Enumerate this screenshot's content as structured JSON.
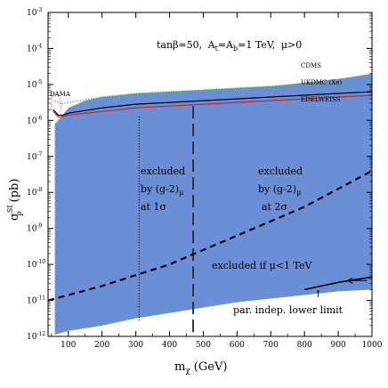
{
  "chart_data": {
    "type": "area",
    "title": "tanβ=50, At=Ab=1 TeV, μ>0",
    "title_parts": {
      "tanb": "tanβ=50,",
      "a_prefix": "A",
      "a_sub1": "t",
      "a_mid": "=A",
      "a_sub2": "b",
      "a_val": "=1 TeV,",
      "mu": "μ>0"
    },
    "xlabel": "mχ (GeV)",
    "xlabel_parts": {
      "m": "m",
      "sub": "χ",
      "unit": "(GeV)"
    },
    "ylabel": "σpSI (pb)",
    "ylabel_parts": {
      "sigma": "σ",
      "sup": "SI",
      "sub": "p",
      "unit": "(pb)"
    },
    "xlim": [
      40,
      1000
    ],
    "ylim_log10": [
      -12,
      -3
    ],
    "y_scale": "log",
    "x_ticks": [
      100,
      200,
      300,
      400,
      500,
      600,
      700,
      800,
      900,
      1000
    ],
    "x_tick_labels": [
      "100",
      "200",
      "300",
      "400",
      "500",
      "600",
      "700",
      "800",
      "900",
      "1000"
    ],
    "y_tick_exponents": [
      -12,
      -11,
      -10,
      -9,
      -8,
      -7,
      -6,
      -5,
      -4,
      -3
    ],
    "y_tick_labels": [
      "10",
      "10",
      "10",
      "10",
      "10",
      "10",
      "10",
      "10",
      "10",
      "10"
    ],
    "y_tick_exp_labels": [
      "-12",
      "-11",
      "-10",
      "-9",
      "-8",
      "-7",
      "-6",
      "-5",
      "-4",
      "-3"
    ],
    "region": {
      "color": "#6b8fd6",
      "upper": [
        [
          60,
          -6.1
        ],
        [
          75,
          -5.95
        ],
        [
          100,
          -5.65
        ],
        [
          150,
          -5.45
        ],
        [
          200,
          -5.35
        ],
        [
          300,
          -5.25
        ],
        [
          400,
          -5.2
        ],
        [
          500,
          -5.15
        ],
        [
          600,
          -5.1
        ],
        [
          700,
          -5.05
        ],
        [
          800,
          -4.95
        ],
        [
          900,
          -4.85
        ],
        [
          1000,
          -4.7
        ]
      ],
      "lower": [
        [
          1000,
          -10.7
        ],
        [
          900,
          -10.75
        ],
        [
          800,
          -10.85
        ],
        [
          700,
          -10.95
        ],
        [
          600,
          -11.05
        ],
        [
          500,
          -11.2
        ],
        [
          400,
          -11.35
        ],
        [
          300,
          -11.5
        ],
        [
          200,
          -11.7
        ],
        [
          100,
          -11.85
        ],
        [
          60,
          -11.95
        ]
      ]
    },
    "series": [
      {
        "name": "CDMS",
        "style": "dotted",
        "color": "#2ecc40",
        "points": [
          [
            60,
            -5.45
          ],
          [
            80,
            -5.55
          ],
          [
            100,
            -5.5
          ],
          [
            200,
            -5.35
          ],
          [
            300,
            -5.25
          ],
          [
            400,
            -5.2
          ],
          [
            500,
            -5.15
          ],
          [
            600,
            -5.1
          ],
          [
            700,
            -5.05
          ],
          [
            800,
            -5.0
          ],
          [
            900,
            -4.95
          ],
          [
            1000,
            -4.9
          ]
        ]
      },
      {
        "name": "UKDMC (Xe)",
        "style": "solid",
        "color": "#000000",
        "points": [
          [
            55,
            -5.7
          ],
          [
            70,
            -5.85
          ],
          [
            85,
            -5.85
          ],
          [
            100,
            -5.8
          ],
          [
            200,
            -5.65
          ],
          [
            300,
            -5.55
          ],
          [
            400,
            -5.5
          ],
          [
            500,
            -5.45
          ],
          [
            600,
            -5.4
          ],
          [
            700,
            -5.35
          ],
          [
            800,
            -5.3
          ],
          [
            900,
            -5.25
          ],
          [
            1000,
            -5.2
          ]
        ]
      },
      {
        "name": "EDELWEISS",
        "style": "solid",
        "color": "#cc2222",
        "points": [
          [
            55,
            -5.75
          ],
          [
            70,
            -5.9
          ],
          [
            85,
            -5.88
          ],
          [
            100,
            -5.85
          ],
          [
            200,
            -5.75
          ],
          [
            300,
            -5.65
          ],
          [
            400,
            -5.6
          ],
          [
            500,
            -5.55
          ],
          [
            600,
            -5.5
          ],
          [
            700,
            -5.45
          ],
          [
            800,
            -5.4
          ],
          [
            900,
            -5.35
          ],
          [
            1000,
            -5.3
          ]
        ]
      }
    ],
    "dama_region": [
      [
        50,
        -5.4
      ],
      [
        60,
        -5.25
      ],
      [
        70,
        -5.3
      ],
      [
        78,
        -5.45
      ],
      [
        78,
        -5.7
      ],
      [
        70,
        -5.8
      ],
      [
        60,
        -5.8
      ],
      [
        50,
        -5.7
      ]
    ],
    "dama_label": "DAMA",
    "g2_1sigma_x": 310,
    "g2_2sigma_x": 470,
    "mu_line": [
      [
        40,
        -11.0
      ],
      [
        200,
        -10.6
      ],
      [
        300,
        -10.3
      ],
      [
        400,
        -10.0
      ],
      [
        500,
        -9.6
      ],
      [
        600,
        -9.2
      ],
      [
        700,
        -8.8
      ],
      [
        800,
        -8.4
      ],
      [
        900,
        -7.9
      ],
      [
        1000,
        -7.4
      ]
    ],
    "lower_limit_line": [
      [
        800,
        -10.7
      ],
      [
        900,
        -10.5
      ],
      [
        1000,
        -10.35
      ]
    ],
    "annotations": {
      "excl_1sigma": [
        "excluded",
        "by (g-2)",
        "at 1σ"
      ],
      "excl_2sigma": [
        "excluded",
        "by (g-2)",
        "at 2σ"
      ],
      "mu_sub": "μ",
      "excluded_mu": "excluded if μ<1 TeV",
      "lower_limit": "par. indep. lower limit",
      "arrow_glyph": "↑"
    }
  }
}
